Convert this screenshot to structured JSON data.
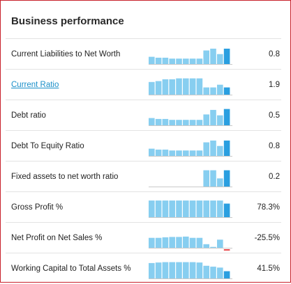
{
  "panel": {
    "title": "Business performance"
  },
  "colors": {
    "bar": "#87cef0",
    "bar_last": "#2a9fe0",
    "bar_negative": "#e8464a",
    "baseline": "#c9c9c9",
    "link": "#1a8fc9",
    "frame": "#c8202a"
  },
  "metrics": [
    {
      "label": "Current Liabilities to Net Worth",
      "value": "0.8",
      "link": false,
      "sparkline": [
        0.4,
        0.35,
        0.35,
        0.3,
        0.3,
        0.3,
        0.3,
        0.3,
        0.75,
        0.85,
        0.55,
        0.85
      ]
    },
    {
      "label": "Current Ratio",
      "value": "1.9",
      "link": true,
      "sparkline": [
        0.7,
        0.75,
        0.85,
        0.85,
        0.9,
        0.9,
        0.9,
        0.9,
        0.4,
        0.4,
        0.55,
        0.4
      ]
    },
    {
      "label": "Debt ratio",
      "value": "0.5",
      "link": false,
      "sparkline": [
        0.4,
        0.35,
        0.35,
        0.3,
        0.3,
        0.3,
        0.3,
        0.3,
        0.6,
        0.85,
        0.55,
        0.9
      ]
    },
    {
      "label": "Debt To Equity Ratio",
      "value": "0.8",
      "link": false,
      "sparkline": [
        0.4,
        0.35,
        0.35,
        0.3,
        0.3,
        0.3,
        0.3,
        0.3,
        0.75,
        0.85,
        0.55,
        0.85
      ]
    },
    {
      "label": "Fixed assets to net worth ratio",
      "value": "0.2",
      "link": false,
      "sparkline": [
        0,
        0,
        0,
        0,
        0,
        0,
        0,
        0,
        0.9,
        0.9,
        0.45,
        0.9
      ]
    },
    {
      "label": "Gross Profit %",
      "value": "78.3%",
      "link": false,
      "sparkline": [
        0.92,
        0.92,
        0.92,
        0.92,
        0.92,
        0.92,
        0.92,
        0.92,
        0.92,
        0.92,
        0.92,
        0.75
      ]
    },
    {
      "label": "Net Profit on Net Sales %",
      "value": "-25.5%",
      "link": false,
      "sparkline": [
        0.55,
        0.55,
        0.58,
        0.6,
        0.6,
        0.62,
        0.55,
        0.55,
        0.2,
        0.05,
        0.45,
        -0.2
      ]
    },
    {
      "label": "Working Capital to Total Assets %",
      "value": "41.5%",
      "link": false,
      "sparkline": [
        0.85,
        0.88,
        0.9,
        0.9,
        0.9,
        0.9,
        0.9,
        0.88,
        0.7,
        0.65,
        0.6,
        0.4
      ]
    }
  ]
}
